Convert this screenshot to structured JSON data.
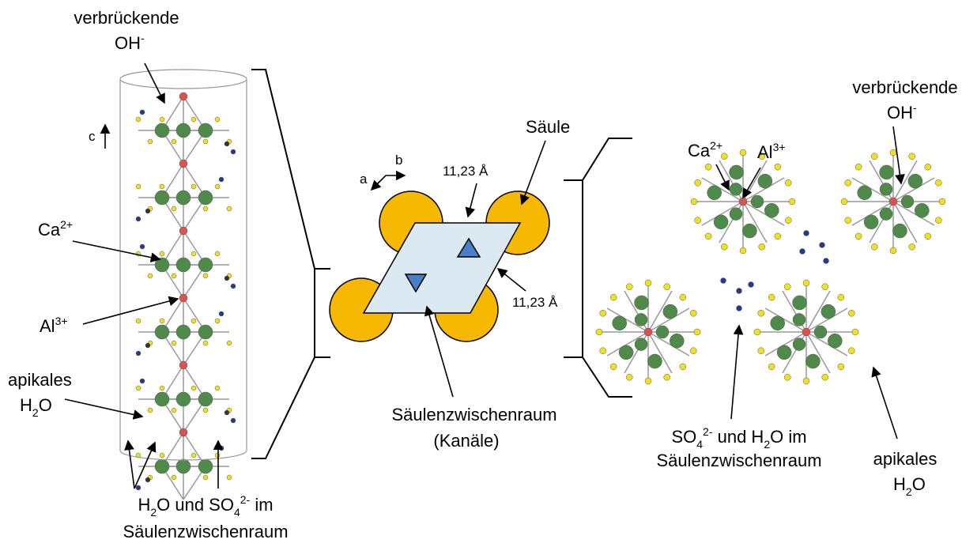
{
  "left": {
    "bridging_oh": {
      "line1": "verbrückende",
      "base": "OH",
      "sup": "-"
    },
    "c_axis": "c",
    "ca": {
      "base": "Ca",
      "sup": "2+"
    },
    "al": {
      "base": "Al",
      "sup": "3+"
    },
    "apical_h2o": {
      "line1": "apikales",
      "h": "H",
      "sub": "2",
      "o": "O"
    },
    "interlayer": {
      "h": "H",
      "sub": "2",
      "mid": "O und SO",
      "sub2": "4",
      "sup": "2-",
      "end": " im",
      "line2": "Säulenzwischenraum"
    }
  },
  "middle": {
    "axis_a": "a",
    "axis_b": "b",
    "distance_top": "11,23 Å",
    "distance_right": "11,23 Å",
    "column": "Säule",
    "channel": {
      "line1": "Säulenzwischenraum",
      "line2": "(Kanäle)"
    }
  },
  "right": {
    "ca": {
      "base": "Ca",
      "sup": "2+"
    },
    "al": {
      "base": "Al",
      "sup": "3+"
    },
    "bridging_oh": {
      "line1": "verbrückende",
      "base": "OH",
      "sup": "-"
    },
    "interlayer": {
      "base": "SO",
      "sub": "4",
      "sup": "2-",
      "mid": " und H",
      "sub2": "2",
      "end": "O im",
      "line2": "Säulenzwischenraum"
    },
    "apical_h2o": {
      "line1": "apikales",
      "h": "H",
      "sub": "2",
      "o": "O"
    }
  }
}
